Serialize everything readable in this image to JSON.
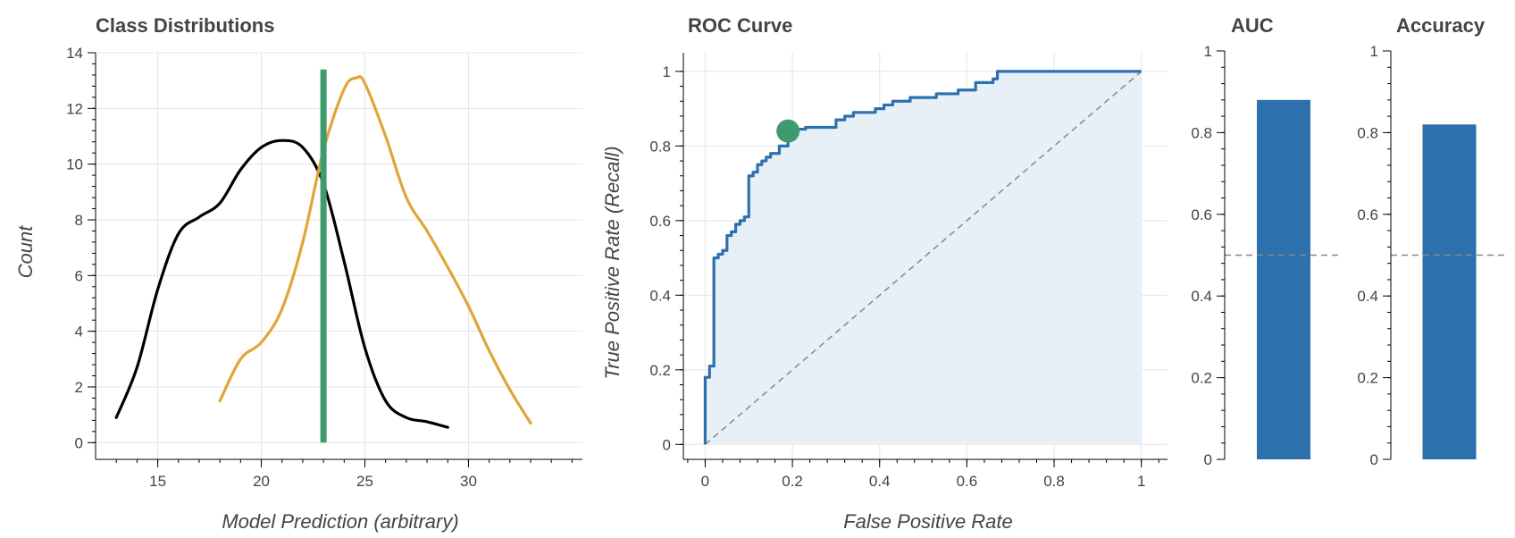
{
  "colors": {
    "negative_class": "#000000",
    "positive_class": "#e0a537",
    "threshold": "#3f9b6e",
    "roc_line": "#2c70ad",
    "roc_fill": "#e7eff7",
    "bar": "#2c70ad",
    "reference": "#888888",
    "grid": "#e5e5e5",
    "axis": "#000000"
  },
  "chart_data": [
    {
      "type": "line",
      "title": "Class Distributions",
      "xlabel": "Model Prediction (arbitrary)",
      "ylabel": "Count",
      "xlim": [
        12,
        35.5
      ],
      "ylim": [
        -0.6,
        14
      ],
      "xticks": [
        15,
        20,
        25,
        30
      ],
      "yticks": [
        0,
        2,
        4,
        6,
        8,
        10,
        12,
        14
      ],
      "grid": true,
      "series": [
        {
          "color_key": "negative_class",
          "x": [
            13,
            14,
            15,
            16,
            17,
            18,
            19,
            20,
            21,
            22,
            23,
            24,
            25,
            26,
            27,
            28,
            29
          ],
          "y": [
            0.9,
            2.7,
            5.5,
            7.5,
            8.1,
            8.6,
            9.8,
            10.6,
            10.85,
            10.6,
            9.3,
            6.5,
            3.4,
            1.5,
            0.9,
            0.75,
            0.55
          ]
        },
        {
          "color_key": "positive_class",
          "x": [
            18,
            19,
            20,
            21,
            22,
            23,
            24,
            24.6,
            25,
            26,
            27,
            28,
            29,
            30,
            31,
            32,
            33
          ],
          "y": [
            1.5,
            3.0,
            3.6,
            4.8,
            7.2,
            10.5,
            12.7,
            13.1,
            12.9,
            11.0,
            8.8,
            7.6,
            6.3,
            4.9,
            3.3,
            1.9,
            0.7
          ]
        }
      ],
      "threshold": {
        "x": 23,
        "y_bottom": 0,
        "y_top": 13.4
      }
    },
    {
      "type": "area",
      "title": "ROC Curve",
      "xlabel": "False Positive Rate",
      "ylabel": "True Positive Rate (Recall)",
      "xlim": [
        -0.05,
        1.06
      ],
      "ylim": [
        -0.04,
        1.05
      ],
      "xticks": [
        0,
        0.2,
        0.4,
        0.6,
        0.8,
        1
      ],
      "yticks": [
        0,
        0.2,
        0.4,
        0.6,
        0.8,
        1
      ],
      "tick_labels": [
        "0",
        "0.2",
        "0.4",
        "0.6",
        "0.8",
        "1"
      ],
      "grid": true,
      "fpr": [
        0,
        0,
        0.01,
        0.01,
        0.02,
        0.02,
        0.03,
        0.03,
        0.04,
        0.04,
        0.05,
        0.05,
        0.06,
        0.06,
        0.07,
        0.07,
        0.08,
        0.08,
        0.09,
        0.09,
        0.1,
        0.1,
        0.11,
        0.11,
        0.12,
        0.12,
        0.13,
        0.13,
        0.14,
        0.14,
        0.15,
        0.15,
        0.17,
        0.17,
        0.19,
        0.19,
        0.21,
        0.21,
        0.23,
        0.23,
        0.3,
        0.3,
        0.32,
        0.32,
        0.34,
        0.34,
        0.39,
        0.39,
        0.41,
        0.41,
        0.43,
        0.43,
        0.47,
        0.47,
        0.53,
        0.53,
        0.58,
        0.58,
        0.62,
        0.62,
        0.66,
        0.66,
        0.67,
        0.67,
        1.0
      ],
      "tpr": [
        0,
        0.18,
        0.18,
        0.21,
        0.21,
        0.5,
        0.5,
        0.51,
        0.51,
        0.52,
        0.52,
        0.56,
        0.56,
        0.57,
        0.57,
        0.59,
        0.59,
        0.6,
        0.6,
        0.61,
        0.61,
        0.72,
        0.72,
        0.73,
        0.73,
        0.75,
        0.75,
        0.76,
        0.76,
        0.77,
        0.77,
        0.78,
        0.78,
        0.8,
        0.8,
        0.84,
        0.84,
        0.845,
        0.845,
        0.85,
        0.85,
        0.87,
        0.87,
        0.88,
        0.88,
        0.89,
        0.89,
        0.9,
        0.9,
        0.91,
        0.91,
        0.92,
        0.92,
        0.93,
        0.93,
        0.94,
        0.94,
        0.95,
        0.95,
        0.97,
        0.97,
        0.98,
        0.98,
        1.0,
        1.0
      ],
      "operating_point": {
        "fpr": 0.19,
        "tpr": 0.84
      },
      "diagonal": [
        [
          0,
          0
        ],
        [
          1,
          1
        ]
      ]
    },
    {
      "type": "bar",
      "title": "AUC",
      "ylim": [
        0,
        1
      ],
      "yticks": [
        0,
        0.2,
        0.4,
        0.6,
        0.8,
        1
      ],
      "tick_labels": [
        "0",
        "0.2",
        "0.4",
        "0.6",
        "0.8",
        "1"
      ],
      "values": [
        0.88
      ],
      "reference_line": 0.5
    },
    {
      "type": "bar",
      "title": "Accuracy",
      "ylim": [
        0,
        1
      ],
      "yticks": [
        0,
        0.2,
        0.4,
        0.6,
        0.8,
        1
      ],
      "tick_labels": [
        "0",
        "0.2",
        "0.4",
        "0.6",
        "0.8",
        "1"
      ],
      "values": [
        0.82
      ],
      "reference_line": 0.5
    }
  ]
}
